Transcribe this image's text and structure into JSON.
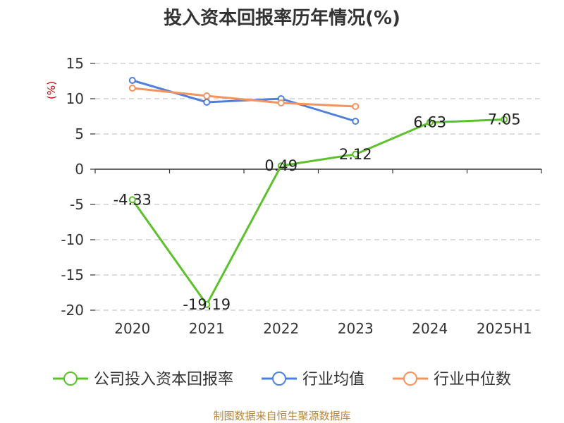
{
  "chart_data": {
    "type": "line",
    "title": "投入资本回报率历年情况(%)",
    "unit_label": "(%)",
    "categories": [
      "2020",
      "2021",
      "2022",
      "2023",
      "2024",
      "2025H1"
    ],
    "ylim": [
      -20,
      15
    ],
    "yticks": [
      15,
      10,
      5,
      0,
      -5,
      -10,
      -15,
      -20
    ],
    "grid": true,
    "legend_position": "bottom",
    "series": [
      {
        "name": "公司投入资本回报率",
        "color": "#5cc12c",
        "values": [
          -4.33,
          -19.19,
          0.49,
          2.12,
          6.63,
          7.05
        ],
        "labels": [
          "-4.33",
          "-19.19",
          "0.49",
          "2.12",
          "6.63",
          "7.05"
        ]
      },
      {
        "name": "行业均值",
        "color": "#4f7fdc",
        "values": [
          12.6,
          9.5,
          10.0,
          6.8,
          null,
          null
        ]
      },
      {
        "name": "行业中位数",
        "color": "#f4935d",
        "values": [
          11.5,
          10.4,
          9.4,
          8.9,
          null,
          null
        ]
      }
    ],
    "source": "制图数据来自恒生聚源数据库"
  }
}
